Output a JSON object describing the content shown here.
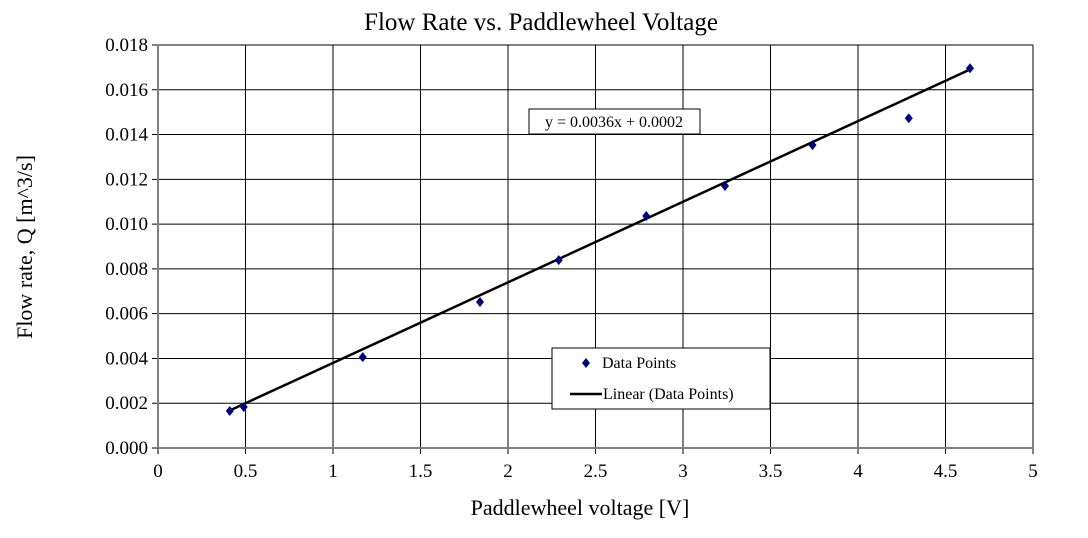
{
  "chart_data": {
    "type": "scatter",
    "title": "Flow Rate vs. Paddlewheel Voltage",
    "xlabel": "Paddlewheel voltage [V]",
    "ylabel": "Flow rate, Q [m^3/s]",
    "xlim": [
      0,
      5
    ],
    "ylim": [
      0,
      0.018
    ],
    "grid": true,
    "xticks": [
      "0",
      "0.5",
      "1",
      "1.5",
      "2",
      "2.5",
      "3",
      "3.5",
      "4",
      "4.5",
      "5"
    ],
    "yticks": [
      "0.000",
      "0.002",
      "0.004",
      "0.006",
      "0.008",
      "0.010",
      "0.012",
      "0.014",
      "0.016",
      "0.018"
    ],
    "series": [
      {
        "name": "Data Points",
        "color": "#000080",
        "x": [
          0.41,
          0.49,
          1.17,
          1.84,
          2.29,
          2.79,
          3.24,
          3.74,
          4.29,
          4.64
        ],
        "y": [
          0.00165,
          0.00183,
          0.00406,
          0.00652,
          0.00839,
          0.01036,
          0.0117,
          0.01353,
          0.01473,
          0.01696
        ]
      }
    ],
    "trendline": {
      "name": "Linear (Data Points)",
      "equation": "y = 0.0036x + 0.0002",
      "slope": 0.0036,
      "intercept": 0.0002,
      "x_range": [
        0.41,
        4.64
      ],
      "color": "#000000"
    },
    "legend_position": "bottom-right-center"
  }
}
